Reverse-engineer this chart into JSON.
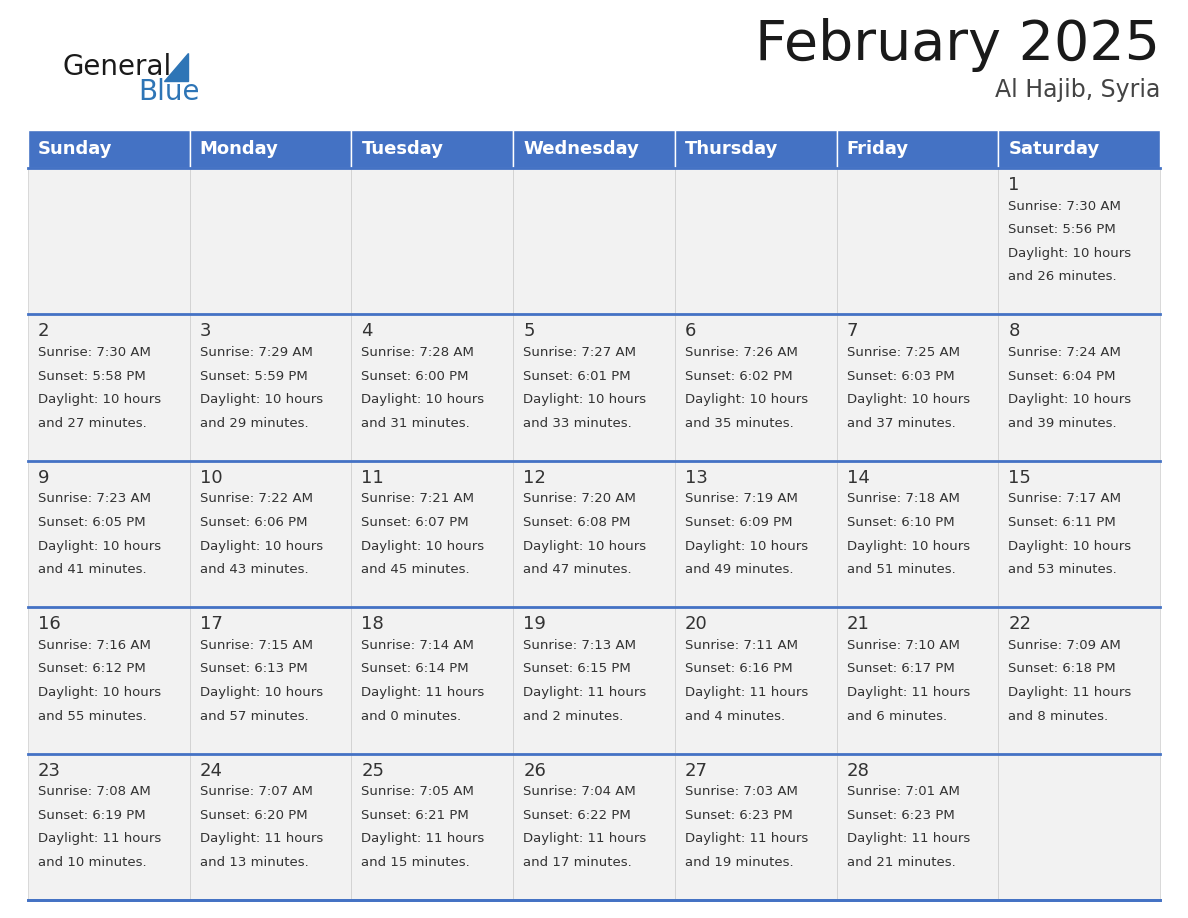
{
  "title": "February 2025",
  "subtitle": "Al Hajib, Syria",
  "days_of_week": [
    "Sunday",
    "Monday",
    "Tuesday",
    "Wednesday",
    "Thursday",
    "Friday",
    "Saturday"
  ],
  "header_bg": "#4472C4",
  "header_text": "#FFFFFF",
  "cell_bg": "#F2F2F2",
  "border_color": "#4472C4",
  "cell_border_color": "#CCCCCC",
  "text_color": "#333333",
  "calendar_data": [
    [
      null,
      null,
      null,
      null,
      null,
      null,
      {
        "day": "1",
        "sunrise": "7:30 AM",
        "sunset": "5:56 PM",
        "daylight_l1": "Daylight: 10 hours",
        "daylight_l2": "and 26 minutes."
      }
    ],
    [
      {
        "day": "2",
        "sunrise": "7:30 AM",
        "sunset": "5:58 PM",
        "daylight_l1": "Daylight: 10 hours",
        "daylight_l2": "and 27 minutes."
      },
      {
        "day": "3",
        "sunrise": "7:29 AM",
        "sunset": "5:59 PM",
        "daylight_l1": "Daylight: 10 hours",
        "daylight_l2": "and 29 minutes."
      },
      {
        "day": "4",
        "sunrise": "7:28 AM",
        "sunset": "6:00 PM",
        "daylight_l1": "Daylight: 10 hours",
        "daylight_l2": "and 31 minutes."
      },
      {
        "day": "5",
        "sunrise": "7:27 AM",
        "sunset": "6:01 PM",
        "daylight_l1": "Daylight: 10 hours",
        "daylight_l2": "and 33 minutes."
      },
      {
        "day": "6",
        "sunrise": "7:26 AM",
        "sunset": "6:02 PM",
        "daylight_l1": "Daylight: 10 hours",
        "daylight_l2": "and 35 minutes."
      },
      {
        "day": "7",
        "sunrise": "7:25 AM",
        "sunset": "6:03 PM",
        "daylight_l1": "Daylight: 10 hours",
        "daylight_l2": "and 37 minutes."
      },
      {
        "day": "8",
        "sunrise": "7:24 AM",
        "sunset": "6:04 PM",
        "daylight_l1": "Daylight: 10 hours",
        "daylight_l2": "and 39 minutes."
      }
    ],
    [
      {
        "day": "9",
        "sunrise": "7:23 AM",
        "sunset": "6:05 PM",
        "daylight_l1": "Daylight: 10 hours",
        "daylight_l2": "and 41 minutes."
      },
      {
        "day": "10",
        "sunrise": "7:22 AM",
        "sunset": "6:06 PM",
        "daylight_l1": "Daylight: 10 hours",
        "daylight_l2": "and 43 minutes."
      },
      {
        "day": "11",
        "sunrise": "7:21 AM",
        "sunset": "6:07 PM",
        "daylight_l1": "Daylight: 10 hours",
        "daylight_l2": "and 45 minutes."
      },
      {
        "day": "12",
        "sunrise": "7:20 AM",
        "sunset": "6:08 PM",
        "daylight_l1": "Daylight: 10 hours",
        "daylight_l2": "and 47 minutes."
      },
      {
        "day": "13",
        "sunrise": "7:19 AM",
        "sunset": "6:09 PM",
        "daylight_l1": "Daylight: 10 hours",
        "daylight_l2": "and 49 minutes."
      },
      {
        "day": "14",
        "sunrise": "7:18 AM",
        "sunset": "6:10 PM",
        "daylight_l1": "Daylight: 10 hours",
        "daylight_l2": "and 51 minutes."
      },
      {
        "day": "15",
        "sunrise": "7:17 AM",
        "sunset": "6:11 PM",
        "daylight_l1": "Daylight: 10 hours",
        "daylight_l2": "and 53 minutes."
      }
    ],
    [
      {
        "day": "16",
        "sunrise": "7:16 AM",
        "sunset": "6:12 PM",
        "daylight_l1": "Daylight: 10 hours",
        "daylight_l2": "and 55 minutes."
      },
      {
        "day": "17",
        "sunrise": "7:15 AM",
        "sunset": "6:13 PM",
        "daylight_l1": "Daylight: 10 hours",
        "daylight_l2": "and 57 minutes."
      },
      {
        "day": "18",
        "sunrise": "7:14 AM",
        "sunset": "6:14 PM",
        "daylight_l1": "Daylight: 11 hours",
        "daylight_l2": "and 0 minutes."
      },
      {
        "day": "19",
        "sunrise": "7:13 AM",
        "sunset": "6:15 PM",
        "daylight_l1": "Daylight: 11 hours",
        "daylight_l2": "and 2 minutes."
      },
      {
        "day": "20",
        "sunrise": "7:11 AM",
        "sunset": "6:16 PM",
        "daylight_l1": "Daylight: 11 hours",
        "daylight_l2": "and 4 minutes."
      },
      {
        "day": "21",
        "sunrise": "7:10 AM",
        "sunset": "6:17 PM",
        "daylight_l1": "Daylight: 11 hours",
        "daylight_l2": "and 6 minutes."
      },
      {
        "day": "22",
        "sunrise": "7:09 AM",
        "sunset": "6:18 PM",
        "daylight_l1": "Daylight: 11 hours",
        "daylight_l2": "and 8 minutes."
      }
    ],
    [
      {
        "day": "23",
        "sunrise": "7:08 AM",
        "sunset": "6:19 PM",
        "daylight_l1": "Daylight: 11 hours",
        "daylight_l2": "and 10 minutes."
      },
      {
        "day": "24",
        "sunrise": "7:07 AM",
        "sunset": "6:20 PM",
        "daylight_l1": "Daylight: 11 hours",
        "daylight_l2": "and 13 minutes."
      },
      {
        "day": "25",
        "sunrise": "7:05 AM",
        "sunset": "6:21 PM",
        "daylight_l1": "Daylight: 11 hours",
        "daylight_l2": "and 15 minutes."
      },
      {
        "day": "26",
        "sunrise": "7:04 AM",
        "sunset": "6:22 PM",
        "daylight_l1": "Daylight: 11 hours",
        "daylight_l2": "and 17 minutes."
      },
      {
        "day": "27",
        "sunrise": "7:03 AM",
        "sunset": "6:23 PM",
        "daylight_l1": "Daylight: 11 hours",
        "daylight_l2": "and 19 minutes."
      },
      {
        "day": "28",
        "sunrise": "7:01 AM",
        "sunset": "6:23 PM",
        "daylight_l1": "Daylight: 11 hours",
        "daylight_l2": "and 21 minutes."
      },
      null
    ]
  ]
}
